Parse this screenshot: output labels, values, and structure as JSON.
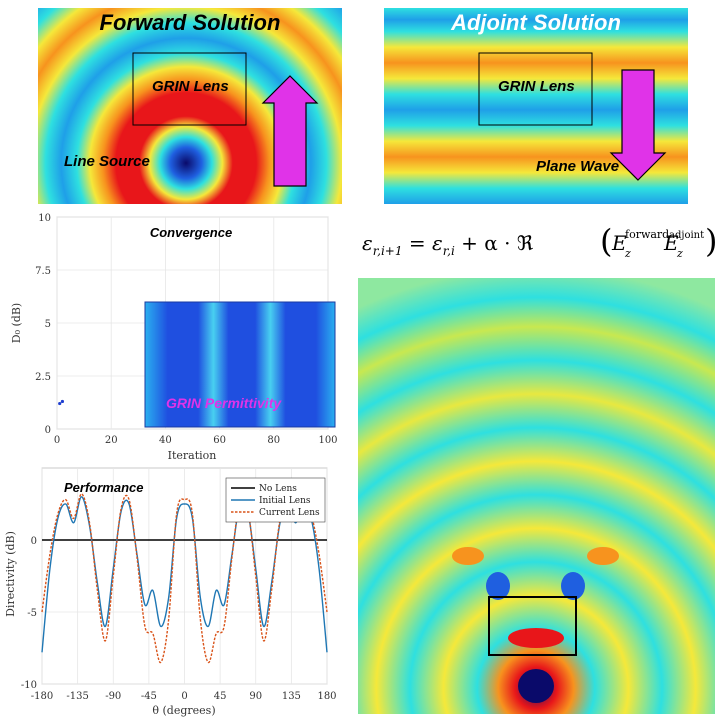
{
  "forward_panel": {
    "title": "Forward Solution",
    "lens_label": "GRIN Lens",
    "source_label": "Line Source"
  },
  "adjoint_panel": {
    "title": "Adjoint Solution",
    "lens_label": "GRIN Lens",
    "wave_label": "Plane Wave"
  },
  "equation": {
    "lhs": "ε",
    "lhs_sub": "r,i+1",
    "eq": " = ",
    "t1": "ε",
    "t1_sub": "r,i",
    "plus": " + α · ℜ",
    "Ez": "E",
    "Ez_sub": "z",
    "forward_sup": "forward",
    "adjoint_sup": "adjoint"
  },
  "inset": {
    "label": "GRIN Permittivity"
  },
  "colors": {
    "field_red": "#e8161a",
    "field_orange": "#f7931e",
    "field_yellow": "#f5e83a",
    "field_cyan": "#2ee0e0",
    "field_blue": "#1f5fe0",
    "arrow_magenta": "#e033e8",
    "no_lens": "#000000",
    "initial_lens": "#1f77b4",
    "current_lens": "#d95319"
  },
  "chart_data": [
    {
      "type": "scatter",
      "title": "Convergence",
      "xlabel": "Iteration",
      "ylabel": "D₀ (dB)",
      "xlim": [
        0,
        100
      ],
      "ylim": [
        0,
        10
      ],
      "xticks": [
        "0",
        "20",
        "40",
        "60",
        "80",
        "100"
      ],
      "yticks": [
        "0",
        "2.5",
        "5",
        "7.5",
        "10"
      ],
      "grid": true,
      "x": [
        1,
        2
      ],
      "values": [
        1.2,
        1.3
      ]
    },
    {
      "type": "line",
      "title": "Performance",
      "xlabel": "θ (degrees)",
      "ylabel": "Directivity (dB)",
      "xlim": [
        -180,
        180
      ],
      "ylim": [
        -10,
        5
      ],
      "xticks": [
        "-180",
        "-135",
        "-90",
        "-45",
        "0",
        "45",
        "90",
        "135",
        "180"
      ],
      "yticks": [
        "-10",
        "-5",
        "0"
      ],
      "grid": true,
      "legend_position": "top-right",
      "x": [
        -180,
        -170,
        -160,
        -150,
        -140,
        -130,
        -120,
        -110,
        -100,
        -90,
        -80,
        -70,
        -60,
        -50,
        -40,
        -30,
        -20,
        -10,
        0,
        10,
        20,
        30,
        40,
        50,
        60,
        70,
        80,
        90,
        100,
        110,
        120,
        130,
        140,
        150,
        160,
        170,
        180
      ],
      "series": [
        {
          "name": "No Lens",
          "values": [
            0,
            0,
            0,
            0,
            0,
            0,
            0,
            0,
            0,
            0,
            0,
            0,
            0,
            0,
            0,
            0,
            0,
            0,
            0,
            0,
            0,
            0,
            0,
            0,
            0,
            0,
            0,
            0,
            0,
            0,
            0,
            0,
            0,
            0,
            0,
            0,
            0
          ]
        },
        {
          "name": "Initial Lens",
          "values": [
            -7.8,
            -2,
            1.5,
            2.5,
            1.2,
            3.0,
            1.0,
            -3.0,
            -6.0,
            -2.0,
            2.0,
            2.5,
            -1.0,
            -4.5,
            -3.5,
            -6.0,
            -4.0,
            1.5,
            2.5,
            1.5,
            -4.0,
            -6.0,
            -3.5,
            -4.5,
            -1.0,
            2.5,
            2.0,
            -2.0,
            -6.0,
            -3.0,
            1.0,
            3.0,
            1.2,
            2.5,
            1.5,
            -2,
            -7.8
          ]
        },
        {
          "name": "Current Lens",
          "values": [
            -5.0,
            -1,
            1.8,
            2.8,
            1.5,
            3.2,
            1.2,
            -3.5,
            -7.0,
            -2.5,
            2.2,
            2.8,
            -1.2,
            -6.0,
            -6.5,
            -8.5,
            -5.5,
            1.8,
            2.8,
            1.8,
            -5.5,
            -8.5,
            -6.5,
            -6.0,
            -1.2,
            2.8,
            2.2,
            -2.5,
            -7.0,
            -3.5,
            1.2,
            3.2,
            1.5,
            2.8,
            1.8,
            -1,
            -5.0
          ]
        }
      ]
    }
  ]
}
